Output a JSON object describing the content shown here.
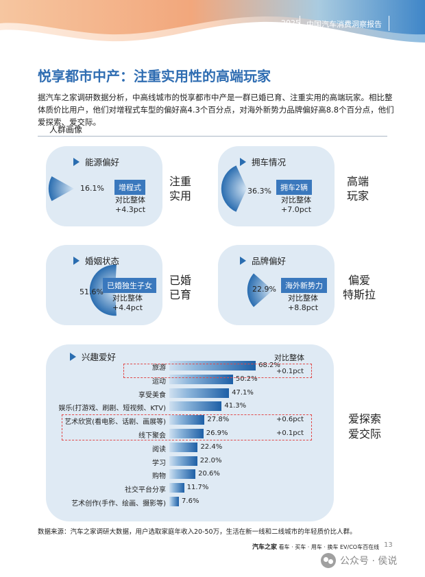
{
  "header": {
    "year": "2025",
    "report_title": "中国汽车消费洞察报告"
  },
  "title": "悦享都市中产：注重实用性的高端玩家",
  "intro": "据汽车之家调研数据分析，中高线城市的悦享都市中产是一群已婚已育、注重实用的高端玩家。相比整体质价比用户，他们对增程式车型的偏好高4.3个百分点，对海外新势力品牌偏好高8.8个百分点，他们爱探索、爱交际。",
  "section_label": "人群画像",
  "cards": [
    {
      "heading": "能源偏好",
      "percent": "16.1%",
      "value": 16.1,
      "tag": "增程式",
      "compare_label": "对比整体",
      "delta": "+4.3pct",
      "side": "注重\n实用"
    },
    {
      "heading": "拥车情况",
      "percent": "36.3%",
      "value": 36.3,
      "tag": "拥车2辆",
      "compare_label": "对比整体",
      "delta": "+7.0pct",
      "side": "高端\n玩家"
    },
    {
      "heading": "婚姻状态",
      "percent": "51.6%",
      "value": 51.6,
      "tag": "已婚独生子女",
      "compare_label": "对比整体",
      "delta": "+4.4pct",
      "side": "已婚\n已育"
    },
    {
      "heading": "品牌偏好",
      "percent": "22.9%",
      "value": 22.9,
      "tag": "海外新势力",
      "compare_label": "对比整体",
      "delta": "+8.8pct",
      "side": "偏爱\n特斯拉"
    }
  ],
  "interests": {
    "heading": "兴趣爱好",
    "compare_title": "对比整体",
    "side": "爱探索\n爱交际"
  },
  "chart_data": {
    "type": "bar",
    "orientation": "horizontal",
    "categories": [
      "旅游",
      "运动",
      "享受美食",
      "娱乐(打游戏、刷剧、短视频、KTV)",
      "艺术欣赏(看电影、话剧、画展等)",
      "线下聚会",
      "阅读",
      "学习",
      "购物",
      "社交平台分享",
      "艺术创作(手作、绘画、摄影等)"
    ],
    "values": [
      68.2,
      50.2,
      47.1,
      41.3,
      27.8,
      26.9,
      22.4,
      22.0,
      20.6,
      11.7,
      7.6
    ],
    "value_labels": [
      "68.2%",
      "50.2%",
      "47.1%",
      "41.3%",
      "27.8%",
      "26.9%",
      "22.4%",
      "22.0%",
      "20.6%",
      "11.7%",
      "7.6%"
    ],
    "deltas": [
      "+0.1pct",
      "",
      "",
      "",
      "+0.6pct",
      "+0.1pct",
      "",
      "",
      "",
      "",
      ""
    ],
    "title": "兴趣爱好",
    "highlight_color": "#e04848",
    "bar_color": "#1d5fa6"
  },
  "source": "数据来源：汽车之家调研大数据，用户选取家庭年收入20-50万，生活在新一线和二线城市的年轻质价比人群。",
  "footer": {
    "brands": [
      "汽车之家",
      "看车 · 买车 · 用车 · 换车",
      "EV/CO车百在线"
    ],
    "page": "13"
  },
  "watermark": "公众号 · 侯说"
}
